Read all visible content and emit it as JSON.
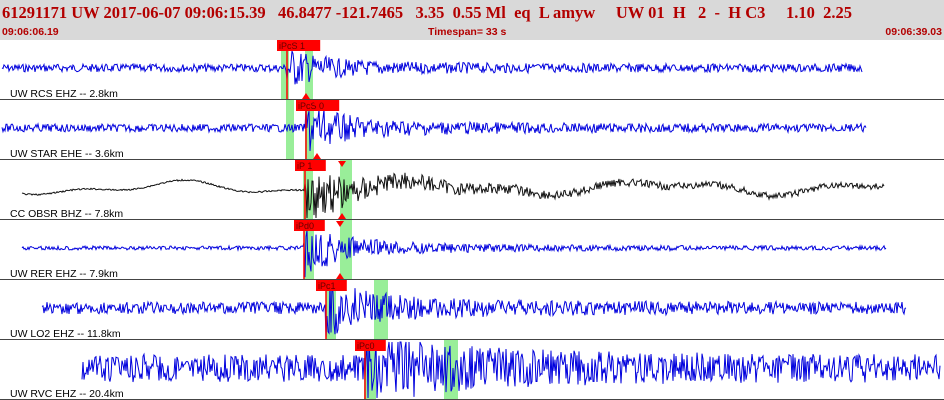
{
  "header": {
    "event_line": "61291171 UW 2017-06-07 09:06:15.39   46.8477 -121.7465   3.35  0.55 Ml  eq  L amyw     UW 01  H   2  -  H C3     1.10  2.25",
    "start_time": "09:06:06.19",
    "timespan_label": "Timespan=  33 s",
    "end_time": "09:06:39.03"
  },
  "colors": {
    "header_bg": "#d9d9d9",
    "header_text": "#b30000",
    "pick_red": "#ff0000",
    "window_green": "#99ee99",
    "trace_blue": "#0000dd",
    "trace_black": "#111111",
    "divider": "#444444"
  },
  "channels": [
    {
      "label": "UW RCS EHZ -- 2.8km",
      "picks": [
        "iPcS 1"
      ],
      "color": "blue"
    },
    {
      "label": "UW STAR EHE -- 3.6km",
      "picks": [
        "iPcS 0"
      ],
      "color": "blue"
    },
    {
      "label": "CC OBSR BHZ -- 7.8km",
      "picks": [
        "iP 1"
      ],
      "color": "black"
    },
    {
      "label": "UW RER EHZ -- 7.9km",
      "picks": [
        "iPd0"
      ],
      "color": "blue"
    },
    {
      "label": "UW LO2 EHZ -- 11.8km",
      "picks": [
        "iPc1"
      ],
      "color": "blue"
    },
    {
      "label": "UW RVC EHZ -- 20.4km",
      "picks": [
        "iPc0"
      ],
      "color": "blue"
    }
  ]
}
